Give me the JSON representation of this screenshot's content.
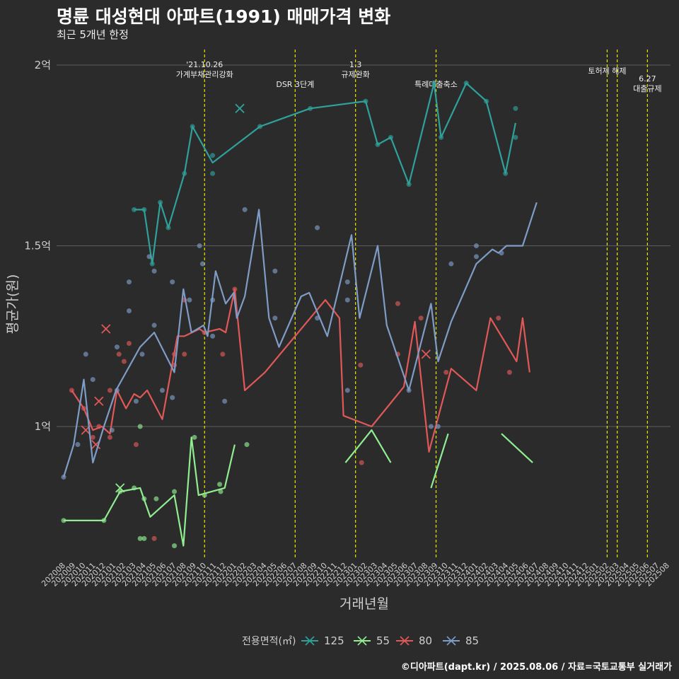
{
  "title": "명륜 대성현대 아파트(1991) 매매가격 변화",
  "subtitle": "최근 5개년 한정",
  "credit": "©디아파트(dapt.kr) / 2025.08.06 / 자료=국토교통부 실거래가",
  "chart_data": {
    "type": "line",
    "xlabel": "거래년월",
    "ylabel": "평균가(원)",
    "yticks": [
      {
        "value": 1.0,
        "label": "1억"
      },
      {
        "value": 1.5,
        "label": "1.5억"
      },
      {
        "value": 2.0,
        "label": "2억"
      }
    ],
    "ylim": [
      0.62,
      2.05
    ],
    "grid": true,
    "legend_title": "전용면적(㎡)",
    "legend_position": "bottom",
    "x_categories": [
      "202008",
      "202009",
      "202010",
      "202011",
      "202012",
      "202101",
      "202102",
      "202103",
      "202104",
      "202105",
      "202106",
      "202107",
      "202108",
      "202109",
      "202110",
      "202111",
      "202112",
      "202201",
      "202202",
      "202203",
      "202204",
      "202205",
      "202206",
      "202207",
      "202208",
      "202209",
      "202210",
      "202211",
      "202212",
      "202301",
      "202302",
      "202303",
      "202304",
      "202305",
      "202306",
      "202307",
      "202308",
      "202309",
      "202310",
      "202311",
      "202312",
      "202401",
      "202402",
      "202403",
      "202404",
      "202405",
      "202406",
      "202407",
      "202408",
      "202409",
      "202410",
      "202411",
      "202412",
      "202501",
      "202502",
      "202503",
      "202504",
      "202505",
      "202506",
      "202507",
      "202508"
    ],
    "events": [
      {
        "x": 14,
        "label": "'21.10.26\n가계부채관리강화"
      },
      {
        "x": 23,
        "label": "DSR 3단계"
      },
      {
        "x": 29,
        "label": "1.3\n규제완화"
      },
      {
        "x": 37,
        "label": "특례대출축소"
      },
      {
        "x": 54,
        "label": "토허제 해제"
      },
      {
        "x": 55,
        "label": ""
      },
      {
        "x": 58,
        "label": "6.27\n대출규제"
      }
    ],
    "series": [
      {
        "name": "125",
        "color": "#2fa19a",
        "line": [
          [
            7,
            1.6
          ],
          [
            8,
            1.6
          ],
          [
            8.8,
            1.45
          ],
          [
            9.6,
            1.62
          ],
          [
            10.4,
            1.55
          ],
          [
            12,
            1.7
          ],
          [
            12.8,
            1.83
          ],
          [
            14.8,
            1.73
          ],
          [
            19.5,
            1.83
          ],
          [
            24.5,
            1.88
          ],
          [
            30,
            1.9
          ],
          [
            31.2,
            1.78
          ],
          [
            32.5,
            1.8
          ],
          [
            34.3,
            1.67
          ],
          [
            36.8,
            1.95
          ],
          [
            37.5,
            1.8
          ],
          [
            40,
            1.95
          ],
          [
            42,
            1.9
          ],
          [
            43.9,
            1.7
          ],
          [
            44.9,
            1.84
          ]
        ],
        "points": [
          [
            7,
            1.6
          ],
          [
            8,
            1.6
          ],
          [
            8.8,
            1.45
          ],
          [
            9.6,
            1.62
          ],
          [
            10.4,
            1.55
          ],
          [
            12,
            1.7
          ],
          [
            12.8,
            1.83
          ],
          [
            14.8,
            1.75
          ],
          [
            14.8,
            1.7
          ],
          [
            19.5,
            1.83
          ],
          [
            24.5,
            1.88
          ],
          [
            30,
            1.9
          ],
          [
            31.2,
            1.78
          ],
          [
            32.5,
            1.8
          ],
          [
            34.3,
            1.67
          ],
          [
            36.8,
            1.95
          ],
          [
            37.5,
            1.8
          ],
          [
            40,
            1.95
          ],
          [
            42,
            1.9
          ],
          [
            43.9,
            1.7
          ],
          [
            44.9,
            1.88
          ],
          [
            44.9,
            1.8
          ]
        ],
        "cancelled": [
          [
            17.5,
            1.88
          ]
        ]
      },
      {
        "name": "55",
        "color": "#90ee90",
        "line": [
          [
            0,
            0.74
          ],
          [
            4,
            0.74
          ],
          [
            5.6,
            0.82
          ],
          [
            7,
            0.83
          ],
          [
            8,
            0.75
          ],
          [
            9.2,
            0.8
          ],
          [
            11,
            0.67
          ],
          [
            13,
            0.97
          ],
          [
            14,
            0.81
          ],
          [
            16,
            0.81
          ],
          [
            18.2,
            0.95
          ]
        ],
        "points": [
          [
            0,
            0.74
          ],
          [
            4,
            0.74
          ],
          [
            5.6,
            0.82
          ],
          [
            7,
            0.83
          ],
          [
            7.6,
            1.0
          ],
          [
            7.6,
            0.69
          ],
          [
            8,
            0.8
          ],
          [
            8,
            0.69
          ],
          [
            9.2,
            0.8
          ],
          [
            11,
            0.82
          ],
          [
            11,
            0.67
          ],
          [
            13,
            0.97
          ],
          [
            14,
            0.81
          ],
          [
            15.5,
            0.84
          ],
          [
            15.6,
            0.82
          ],
          [
            18.2,
            0.95
          ]
        ],
        "segments": [
          [
            [
              0,
              0.74
            ],
            [
              4,
              0.74
            ],
            [
              5.6,
              0.82
            ],
            [
              7.6,
              0.83
            ],
            [
              8.6,
              0.75
            ],
            [
              11,
              0.81
            ],
            [
              11.9,
              0.67
            ],
            [
              12.7,
              0.97
            ],
            [
              13.4,
              0.81
            ],
            [
              16,
              0.83
            ],
            [
              17,
              0.95
            ]
          ],
          [
            [
              28,
              0.9
            ],
            [
              30.6,
              0.99
            ],
            [
              32.5,
              0.9
            ]
          ],
          [
            [
              36.5,
              0.83
            ],
            [
              38.2,
              0.98
            ]
          ],
          [
            [
              43.5,
              0.98
            ],
            [
              46.6,
              0.9
            ]
          ]
        ],
        "cancelled": [
          [
            5.6,
            0.83
          ]
        ]
      },
      {
        "name": "80",
        "color": "#e05858",
        "points": [
          [
            0.8,
            1.1
          ],
          [
            2,
            1.05
          ],
          [
            2.9,
            0.97
          ],
          [
            3.5,
            1.0
          ],
          [
            4.6,
            0.97
          ],
          [
            4.6,
            1.1
          ],
          [
            5.5,
            1.2
          ],
          [
            6,
            1.18
          ],
          [
            6.5,
            1.23
          ],
          [
            7.2,
            0.95
          ],
          [
            9,
            0.69
          ],
          [
            11,
            1.2
          ],
          [
            11,
            1.17
          ],
          [
            12,
            1.35
          ],
          [
            12,
            1.2
          ],
          [
            14,
            1.26
          ],
          [
            15.8,
            1.2
          ],
          [
            17,
            1.38
          ],
          [
            29.5,
            1.17
          ],
          [
            29.6,
            0.9
          ],
          [
            33.2,
            1.34
          ],
          [
            33.2,
            1.2
          ],
          [
            35.5,
            1.3
          ],
          [
            38,
            1.15
          ],
          [
            43.2,
            1.3
          ],
          [
            44.3,
            1.15
          ]
        ],
        "cancelled": [
          [
            4.2,
            1.27
          ],
          [
            3.5,
            1.07
          ],
          [
            2.2,
            0.99
          ],
          [
            3.2,
            0.95
          ],
          [
            36,
            1.2
          ]
        ]
      },
      {
        "name": "85",
        "color": "#7f9cc6",
        "points": [
          [
            0,
            0.86
          ],
          [
            1.4,
            0.95
          ],
          [
            2.2,
            1.2
          ],
          [
            2.9,
            1.13
          ],
          [
            4.8,
            0.99
          ],
          [
            5.3,
            1.1
          ],
          [
            5.3,
            1.22
          ],
          [
            6.5,
            1.4
          ],
          [
            6.5,
            1.32
          ],
          [
            7.2,
            1.07
          ],
          [
            7.8,
            1.2
          ],
          [
            8.5,
            1.47
          ],
          [
            9,
            1.43
          ],
          [
            9,
            1.28
          ],
          [
            9.8,
            1.1
          ],
          [
            10.8,
            1.4
          ],
          [
            10.8,
            1.08
          ],
          [
            12.5,
            1.35
          ],
          [
            13.5,
            1.5
          ],
          [
            13.8,
            1.45
          ],
          [
            14.8,
            1.35
          ],
          [
            14.8,
            1.25
          ],
          [
            16,
            1.07
          ],
          [
            18,
            1.6
          ],
          [
            21,
            1.43
          ],
          [
            21,
            1.3
          ],
          [
            25.2,
            1.55
          ],
          [
            25.2,
            1.3
          ],
          [
            28.2,
            1.4
          ],
          [
            28.2,
            1.35
          ],
          [
            28.2,
            1.1
          ],
          [
            34.3,
            1.1
          ],
          [
            36.5,
            1.0
          ],
          [
            37.2,
            1.0
          ],
          [
            38.5,
            1.45
          ],
          [
            41,
            1.5
          ],
          [
            41,
            1.47
          ],
          [
            43.5,
            1.48
          ]
        ]
      }
    ]
  }
}
